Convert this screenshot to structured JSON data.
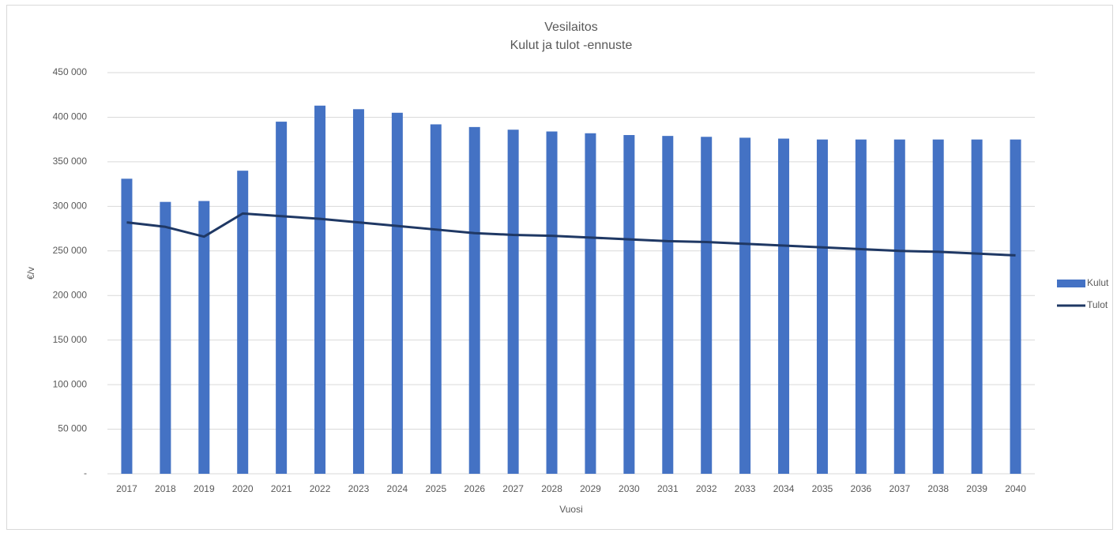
{
  "chart_data": {
    "type": "bar",
    "title": "Vesilaitos",
    "subtitle": "Kulut ja tulot -ennuste",
    "y_label": "€/v",
    "x_label": "Vuosi",
    "categories": [
      "2017",
      "2018",
      "2019",
      "2020",
      "2021",
      "2022",
      "2023",
      "2024",
      "2025",
      "2026",
      "2027",
      "2028",
      "2029",
      "2030",
      "2031",
      "2032",
      "2033",
      "2034",
      "2035",
      "2036",
      "2037",
      "2038",
      "2039",
      "2040"
    ],
    "series": [
      {
        "name": "Kulut",
        "type": "bar",
        "color": "#4472c4",
        "values": [
          331000,
          305000,
          306000,
          340000,
          395000,
          413000,
          409000,
          405000,
          392000,
          389000,
          386000,
          384000,
          382000,
          380000,
          379000,
          378000,
          377000,
          376000,
          375000,
          375000,
          375000,
          375000,
          375000,
          375000
        ]
      },
      {
        "name": "Tulot",
        "type": "line",
        "color": "#1f3864",
        "values": [
          282000,
          277000,
          266000,
          292000,
          289000,
          286000,
          282000,
          278000,
          274000,
          270000,
          268000,
          267000,
          265000,
          263000,
          261000,
          260000,
          258000,
          256000,
          254000,
          252000,
          250000,
          249000,
          247000,
          245000
        ]
      }
    ],
    "ylim": [
      0,
      450000
    ],
    "yticks": [
      {
        "value": 0,
        "label": "-"
      },
      {
        "value": 50000,
        "label": "50 000"
      },
      {
        "value": 100000,
        "label": "100 000"
      },
      {
        "value": 150000,
        "label": "150 000"
      },
      {
        "value": 200000,
        "label": "200 000"
      },
      {
        "value": 250000,
        "label": "250 000"
      },
      {
        "value": 300000,
        "label": "300 000"
      },
      {
        "value": 350000,
        "label": "350 000"
      },
      {
        "value": 400000,
        "label": "400 000"
      },
      {
        "value": 450000,
        "label": "450 000"
      }
    ],
    "grid": true,
    "legend": "right"
  }
}
